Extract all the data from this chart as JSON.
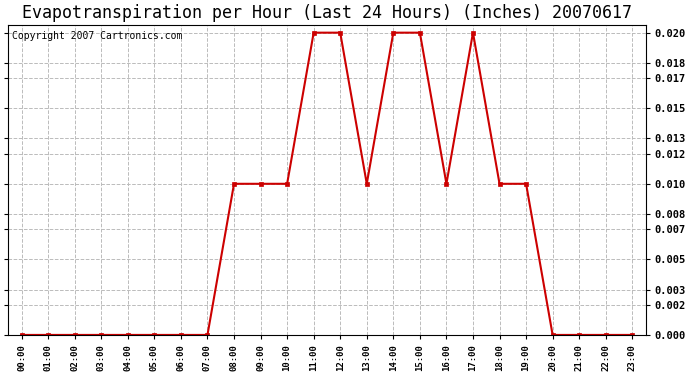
{
  "title": "Evapotranspiration per Hour (Last 24 Hours) (Inches) 20070617",
  "copyright_text": "Copyright 2007 Cartronics.com",
  "hours": [
    "00:00",
    "01:00",
    "02:00",
    "03:00",
    "04:00",
    "05:00",
    "06:00",
    "07:00",
    "08:00",
    "09:00",
    "10:00",
    "11:00",
    "12:00",
    "13:00",
    "14:00",
    "15:00",
    "16:00",
    "17:00",
    "18:00",
    "19:00",
    "20:00",
    "21:00",
    "22:00",
    "23:00"
  ],
  "values": [
    0.0,
    0.0,
    0.0,
    0.0,
    0.0,
    0.0,
    0.0,
    0.0,
    0.01,
    0.01,
    0.01,
    0.02,
    0.02,
    0.01,
    0.02,
    0.02,
    0.01,
    0.02,
    0.01,
    0.01,
    0.0,
    0.0,
    0.0,
    0.0
  ],
  "line_color": "#cc0000",
  "marker_color": "#cc0000",
  "bg_color": "#ffffff",
  "grid_color": "#bbbbbb",
  "ylim": [
    0.0,
    0.0205
  ],
  "yticks": [
    0.0,
    0.002,
    0.003,
    0.005,
    0.007,
    0.008,
    0.01,
    0.012,
    0.013,
    0.015,
    0.017,
    0.018,
    0.02
  ],
  "title_fontsize": 12,
  "copyright_fontsize": 7
}
